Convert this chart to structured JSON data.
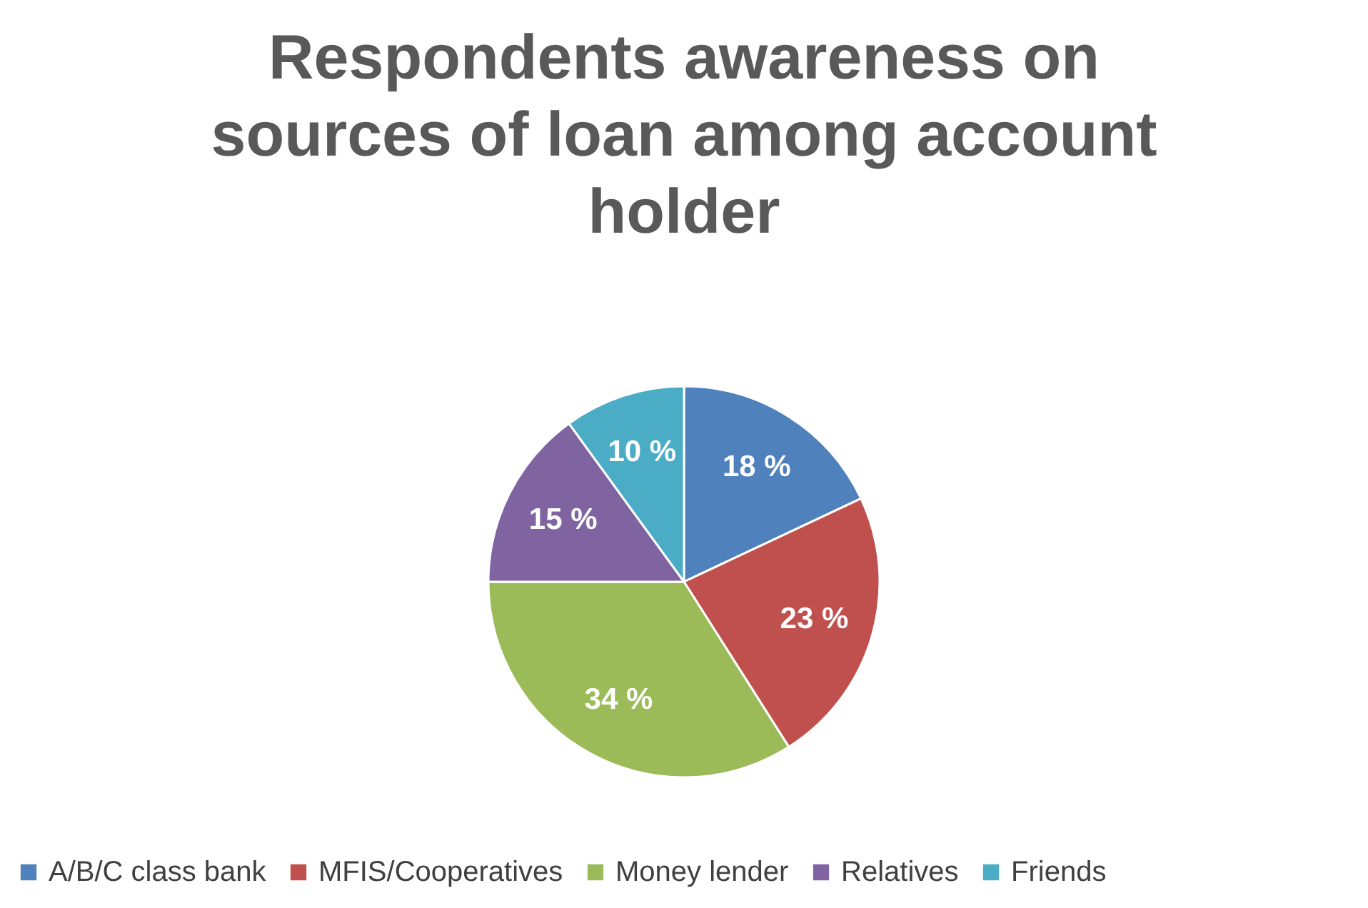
{
  "chart_data": {
    "type": "pie",
    "title": "Respondents awareness on sources of loan among account holder",
    "categories": [
      "A/B/C class bank",
      "MFIS/Cooperatives",
      "Money lender",
      "Relatives",
      "Friends"
    ],
    "values": [
      18,
      23,
      34,
      15,
      10
    ],
    "colors": [
      "#4f81bd",
      "#c0504d",
      "#9bbb59",
      "#8064a2",
      "#4bacc6"
    ],
    "value_labels": [
      "18 %",
      "23 %",
      "34 %",
      "15 %",
      "10 %"
    ],
    "legend": "bottom"
  }
}
